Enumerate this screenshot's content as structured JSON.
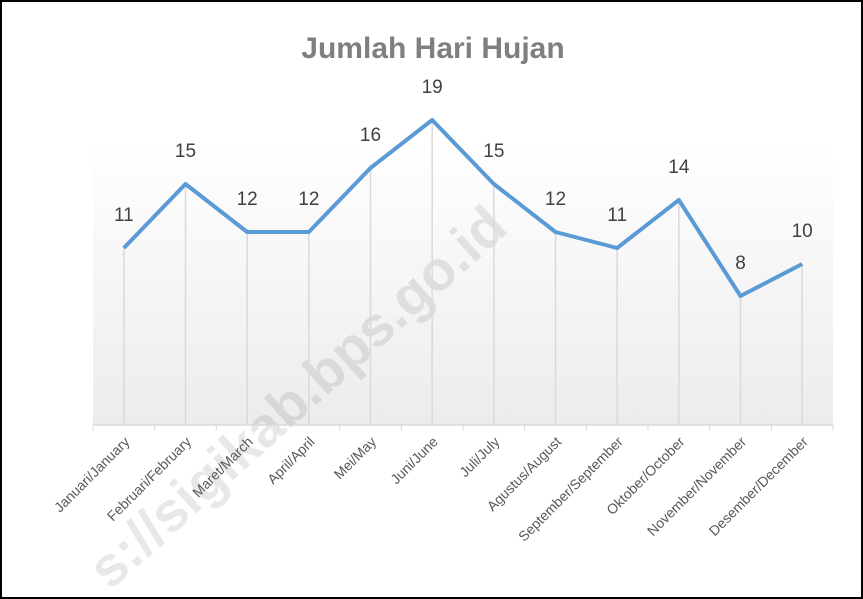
{
  "chart_data": {
    "type": "line",
    "title": "Jumlah Hari Hujan",
    "categories": [
      "Januari/January",
      "Februari/February",
      "Maret/March",
      "April/April",
      "Mei/May",
      "Juni/June",
      "Juli/July",
      "Agustus/August",
      "September/September",
      "Oktober/October",
      "November/November",
      "Desember/December"
    ],
    "series": [
      {
        "name": "Jumlah Hari Hujan",
        "color": "#5b9bd5",
        "values": [
          11,
          15,
          12,
          12,
          16,
          19,
          15,
          12,
          11,
          14,
          8,
          10
        ]
      }
    ],
    "ylim": [
      0,
      20
    ],
    "drop_lines": true,
    "data_labels": true,
    "watermark": "s://sigikab.bps.go.id"
  }
}
